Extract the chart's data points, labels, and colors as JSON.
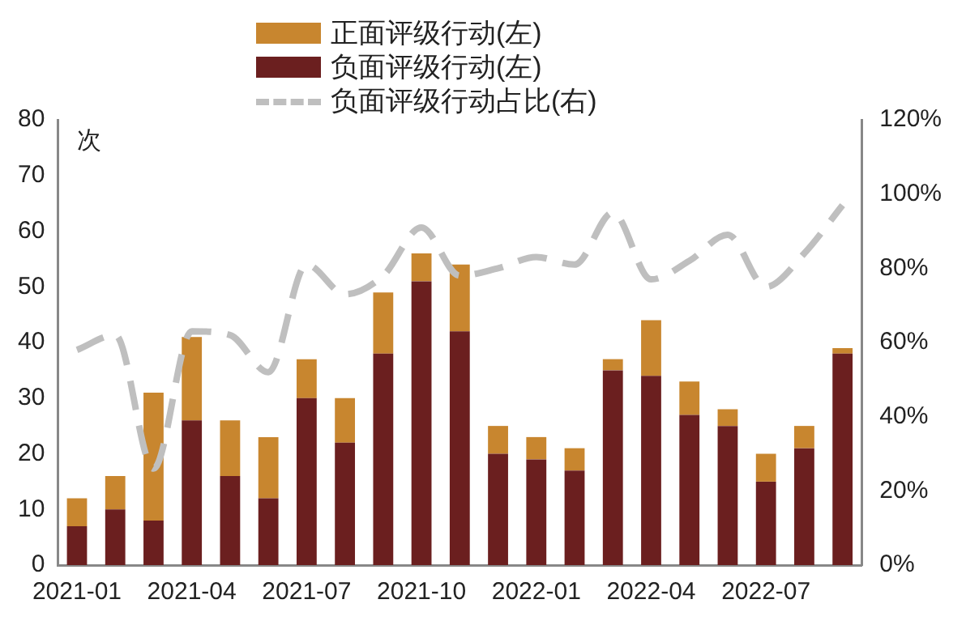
{
  "chart_data": {
    "type": "bar",
    "ylabel": "次",
    "stacked": true,
    "grid": false,
    "legend": "top",
    "marker": "none",
    "categories": [
      "2021-01",
      null,
      null,
      "2021-04",
      null,
      null,
      "2021-07",
      null,
      null,
      "2021-10",
      null,
      null,
      "2022-01",
      null,
      null,
      "2022-04",
      null,
      null,
      "2022-07",
      null,
      null
    ],
    "series": [
      {
        "name": "负面评级行动(左)",
        "color": "#6b1f1f",
        "values": [
          7,
          10,
          8,
          26,
          16,
          12,
          30,
          22,
          38,
          51,
          42,
          20,
          19,
          17,
          35,
          34,
          27,
          25,
          15,
          21,
          38
        ]
      },
      {
        "name": "正面评级行动(左)",
        "color": "#c8862f",
        "values": [
          5,
          6,
          23,
          15,
          10,
          11,
          7,
          8,
          11,
          5,
          12,
          5,
          4,
          4,
          2,
          10,
          6,
          3,
          5,
          4,
          1
        ]
      },
      {
        "name": "负面评级行动占比(右)",
        "type": "line",
        "axis": "y2",
        "line_style": "dashed",
        "color": "#bfbfbf",
        "values": [
          58,
          62,
          26,
          63,
          62,
          52,
          81,
          73,
          78,
          91,
          78,
          80,
          83,
          81,
          95,
          77,
          82,
          89,
          75,
          84,
          97
        ]
      }
    ],
    "ylim": [
      0,
      80
    ],
    "yticks": [
      0,
      10,
      20,
      30,
      40,
      50,
      60,
      70,
      80
    ],
    "y2lim": [
      0,
      120
    ],
    "y2ticks": [
      {
        "value": 0,
        "label": "0%"
      },
      {
        "value": 20,
        "label": "20%"
      },
      {
        "value": 40,
        "label": "40%"
      },
      {
        "value": 60,
        "label": "60%"
      },
      {
        "value": 80,
        "label": "80%"
      },
      {
        "value": 100,
        "label": "100%"
      },
      {
        "value": 120,
        "label": "120%"
      }
    ]
  }
}
